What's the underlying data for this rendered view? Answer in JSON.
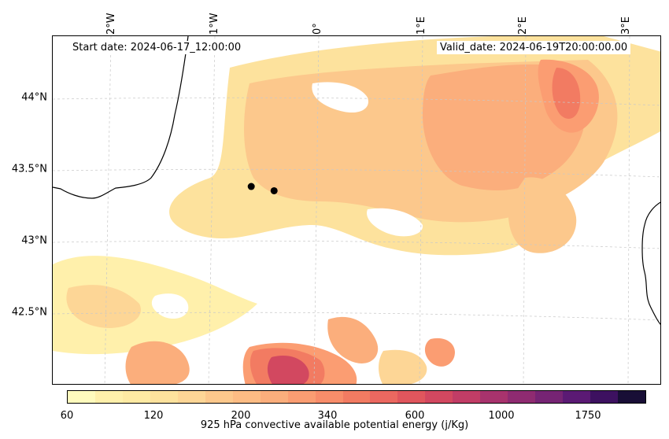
{
  "map": {
    "start_date": "Start date: 2024-06-17_12:00:00",
    "valid_date": "Valid_date: 2024-06-19T20:00:00.00",
    "lon_labels": [
      "2°W",
      "1°W",
      "0°",
      "1°E",
      "2°E",
      "3°E"
    ],
    "lat_labels": [
      "44°N",
      "43.5°N",
      "43°N",
      "42.5°N"
    ],
    "markers": [
      {
        "lon": -0.65,
        "lat": 43.39
      },
      {
        "lon": -0.43,
        "lat": 43.36
      }
    ]
  },
  "colorbar": {
    "label": "925 hPa convective available potential energy (j/Kg)",
    "tick_labels": [
      "60",
      "120",
      "200",
      "340",
      "600",
      "1000",
      "1750"
    ],
    "colors": [
      "#fffbbd",
      "#fff0ab",
      "#feeaa3",
      "#fde29d",
      "#fdd696",
      "#fcc88c",
      "#fcbc84",
      "#fbae7c",
      "#fb9d72",
      "#f88d6a",
      "#f27b62",
      "#eb6860",
      "#e0565d",
      "#d24860",
      "#c13d66",
      "#a8336d",
      "#8f2b71",
      "#762474",
      "#5b1a74",
      "#3d1160",
      "#180e36"
    ]
  }
}
